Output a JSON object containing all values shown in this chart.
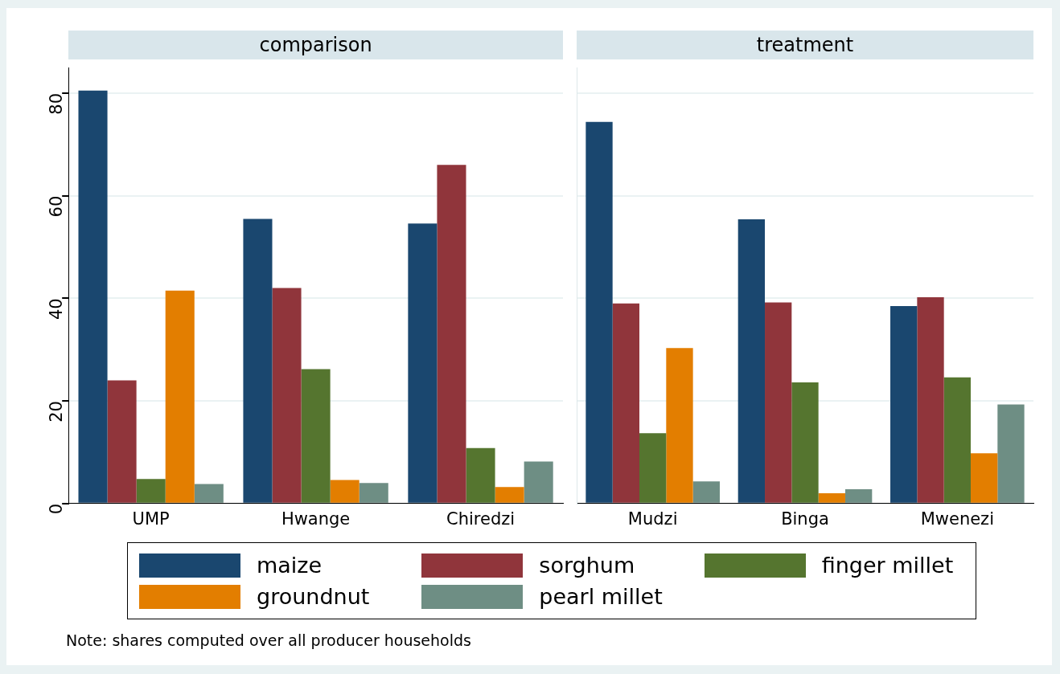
{
  "chart_data": [
    {
      "type": "bar",
      "title": "comparison",
      "categories": [
        "UMP",
        "Hwange",
        "Chiredzi"
      ],
      "ylim": [
        0,
        85
      ],
      "yticks": [
        0,
        20,
        40,
        60,
        80
      ],
      "grid": "y",
      "legend": "bottom",
      "annotations": [
        "Note: shares computed over all producer households"
      ],
      "series": [
        {
          "name": "maize",
          "color": "#1a476f",
          "values": [
            80.5,
            55.5,
            54.6
          ]
        },
        {
          "name": "sorghum",
          "color": "#90353b",
          "values": [
            24,
            42,
            66
          ]
        },
        {
          "name": "finger millet",
          "color": "#55752f",
          "values": [
            4.8,
            26.2,
            10.8
          ]
        },
        {
          "name": "groundnut",
          "color": "#e37e00",
          "values": [
            41.5,
            4.6,
            3.2
          ]
        },
        {
          "name": "pearl millet",
          "color": "#6e8e84",
          "values": [
            3.8,
            4,
            8.2
          ]
        }
      ]
    },
    {
      "type": "bar",
      "title": "treatment",
      "categories": [
        "Mudzi",
        "Binga",
        "Mwenezi"
      ],
      "ylim": [
        0,
        85
      ],
      "yticks": [
        0,
        20,
        40,
        60,
        80
      ],
      "grid": "y",
      "tick_labels": "x",
      "series": [
        {
          "color": "#1a476f",
          "values": [
            74.4,
            55.4,
            38.5
          ]
        },
        {
          "color": "#90353b",
          "values": [
            39,
            39.2,
            40.2
          ]
        },
        {
          "color": "#55752f",
          "values": [
            13.7,
            23.6,
            24.6
          ]
        },
        {
          "color": "#e37e00",
          "values": [
            30.3,
            2,
            9.8
          ]
        },
        {
          "color": "#6e8e84",
          "values": [
            4.3,
            2.8,
            19.3
          ]
        }
      ]
    }
  ]
}
